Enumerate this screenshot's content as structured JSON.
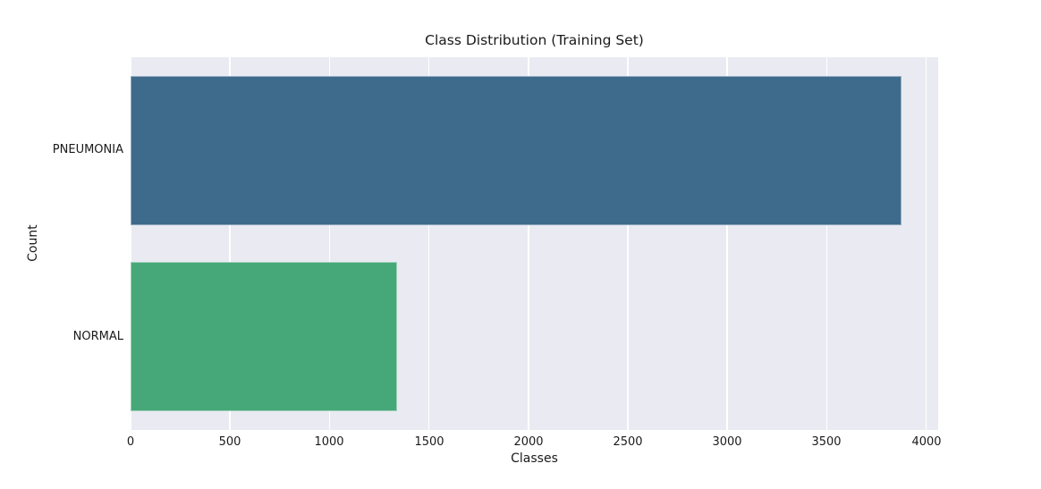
{
  "chart_data": {
    "type": "bar",
    "orientation": "horizontal",
    "title": "Class Distribution (Training Set)",
    "xlabel": "Classes",
    "ylabel": "Count",
    "categories": [
      "PNEUMONIA",
      "NORMAL"
    ],
    "values": [
      3875,
      1341
    ],
    "bar_colors": [
      "#3e6a8c",
      "#46a878"
    ],
    "x_ticks": [
      0,
      500,
      1000,
      1500,
      2000,
      2500,
      3000,
      3500,
      4000
    ],
    "xlim": [
      0,
      4060
    ],
    "grid": true,
    "legend": false,
    "plot_bg_color": "#eaeaf2",
    "grid_color": "#ffffff",
    "text_color": "#1a1a1a"
  }
}
